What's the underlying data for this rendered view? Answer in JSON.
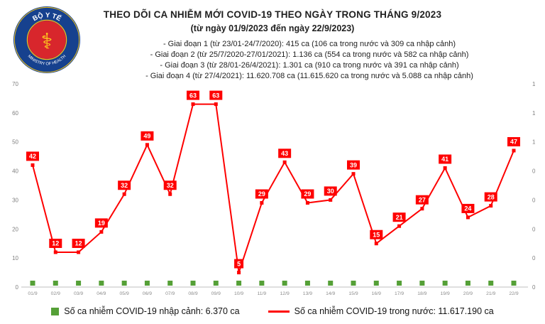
{
  "header": {
    "title": "THEO DÕI CA NHIỄM MỚI COVID-19 THEO NGÀY TRONG THÁNG 9/2023",
    "subtitle": "(từ ngày 01/9/2023 đến ngày 22/9/2023)",
    "info_lines": [
      "- Giai đoạn 1 (từ 23/01-24/7/2020): 415 ca (106 ca trong nước và 309 ca nhập cảnh)",
      "- Giai đoạn 2 (từ 25/7/2020-27/01/2021): 1.136 ca (554 ca trong nước và 582 ca nhập cảnh)",
      "- Giai đoạn 3 (từ 28/01-26/4/2021): 1.301 ca (910 ca trong nước và 391 ca nhập cảnh)",
      "- Giai đoạn 4 (từ 27/4/2021): 11.620.708 ca (11.615.620 ca trong nước và 5.088 ca nhập cảnh)"
    ]
  },
  "logo": {
    "top_text": "BỘ Y TẾ",
    "bottom_text": "MINISTRY OF HEALTH",
    "colors": {
      "ring": "#16418e",
      "center": "#d8262c",
      "accent": "#f5c518"
    }
  },
  "chart_data": {
    "type": "line",
    "title": "THEO DÕI CA NHIỄM MỚI COVID-19 THEO NGÀY TRONG THÁNG 9/2023",
    "categories": [
      "01/9",
      "02/9",
      "03/9",
      "04/9",
      "05/9",
      "06/9",
      "07/9",
      "08/9",
      "09/9",
      "10/9",
      "11/9",
      "12/9",
      "13/9",
      "14/9",
      "15/9",
      "16/9",
      "17/9",
      "18/9",
      "19/9",
      "20/9",
      "21/9",
      "22/9"
    ],
    "series": [
      {
        "name": "Số ca nhiễm COVID-19 trong nước",
        "type": "line",
        "color": "#fe0000",
        "values": [
          42,
          12,
          12,
          19,
          32,
          49,
          32,
          63,
          63,
          5,
          29,
          43,
          29,
          30,
          39,
          15,
          21,
          27,
          41,
          24,
          28,
          47
        ]
      },
      {
        "name": "Số ca nhiễm COVID-19 nhập cảnh",
        "type": "bar",
        "color": "#55a037",
        "values": [
          0,
          0,
          0,
          0,
          0,
          0,
          0,
          0,
          0,
          0,
          0,
          0,
          0,
          0,
          0,
          0,
          0,
          0,
          0,
          0,
          0,
          0
        ],
        "rendered_as": "small green square at baseline for each day"
      }
    ],
    "left_axis": {
      "min": 0,
      "max": 70,
      "ticks": [
        0,
        10,
        20,
        30,
        40,
        50,
        60,
        70
      ]
    },
    "right_axis": {
      "tick_labels": [
        "1",
        "1",
        "1",
        "0",
        "0",
        "0",
        "0",
        "0"
      ]
    },
    "data_labels": true,
    "grid": false,
    "legend_position": "bottom"
  },
  "legend": {
    "items": [
      {
        "label": "Số ca nhiễm COVID-19 nhập cảnh: 6.370 ca",
        "color": "#55a037",
        "marker": "square"
      },
      {
        "label": "Số ca nhiễm COVID-19 trong nước: 11.617.190 ca",
        "color": "#fe0000",
        "marker": "line"
      }
    ]
  }
}
